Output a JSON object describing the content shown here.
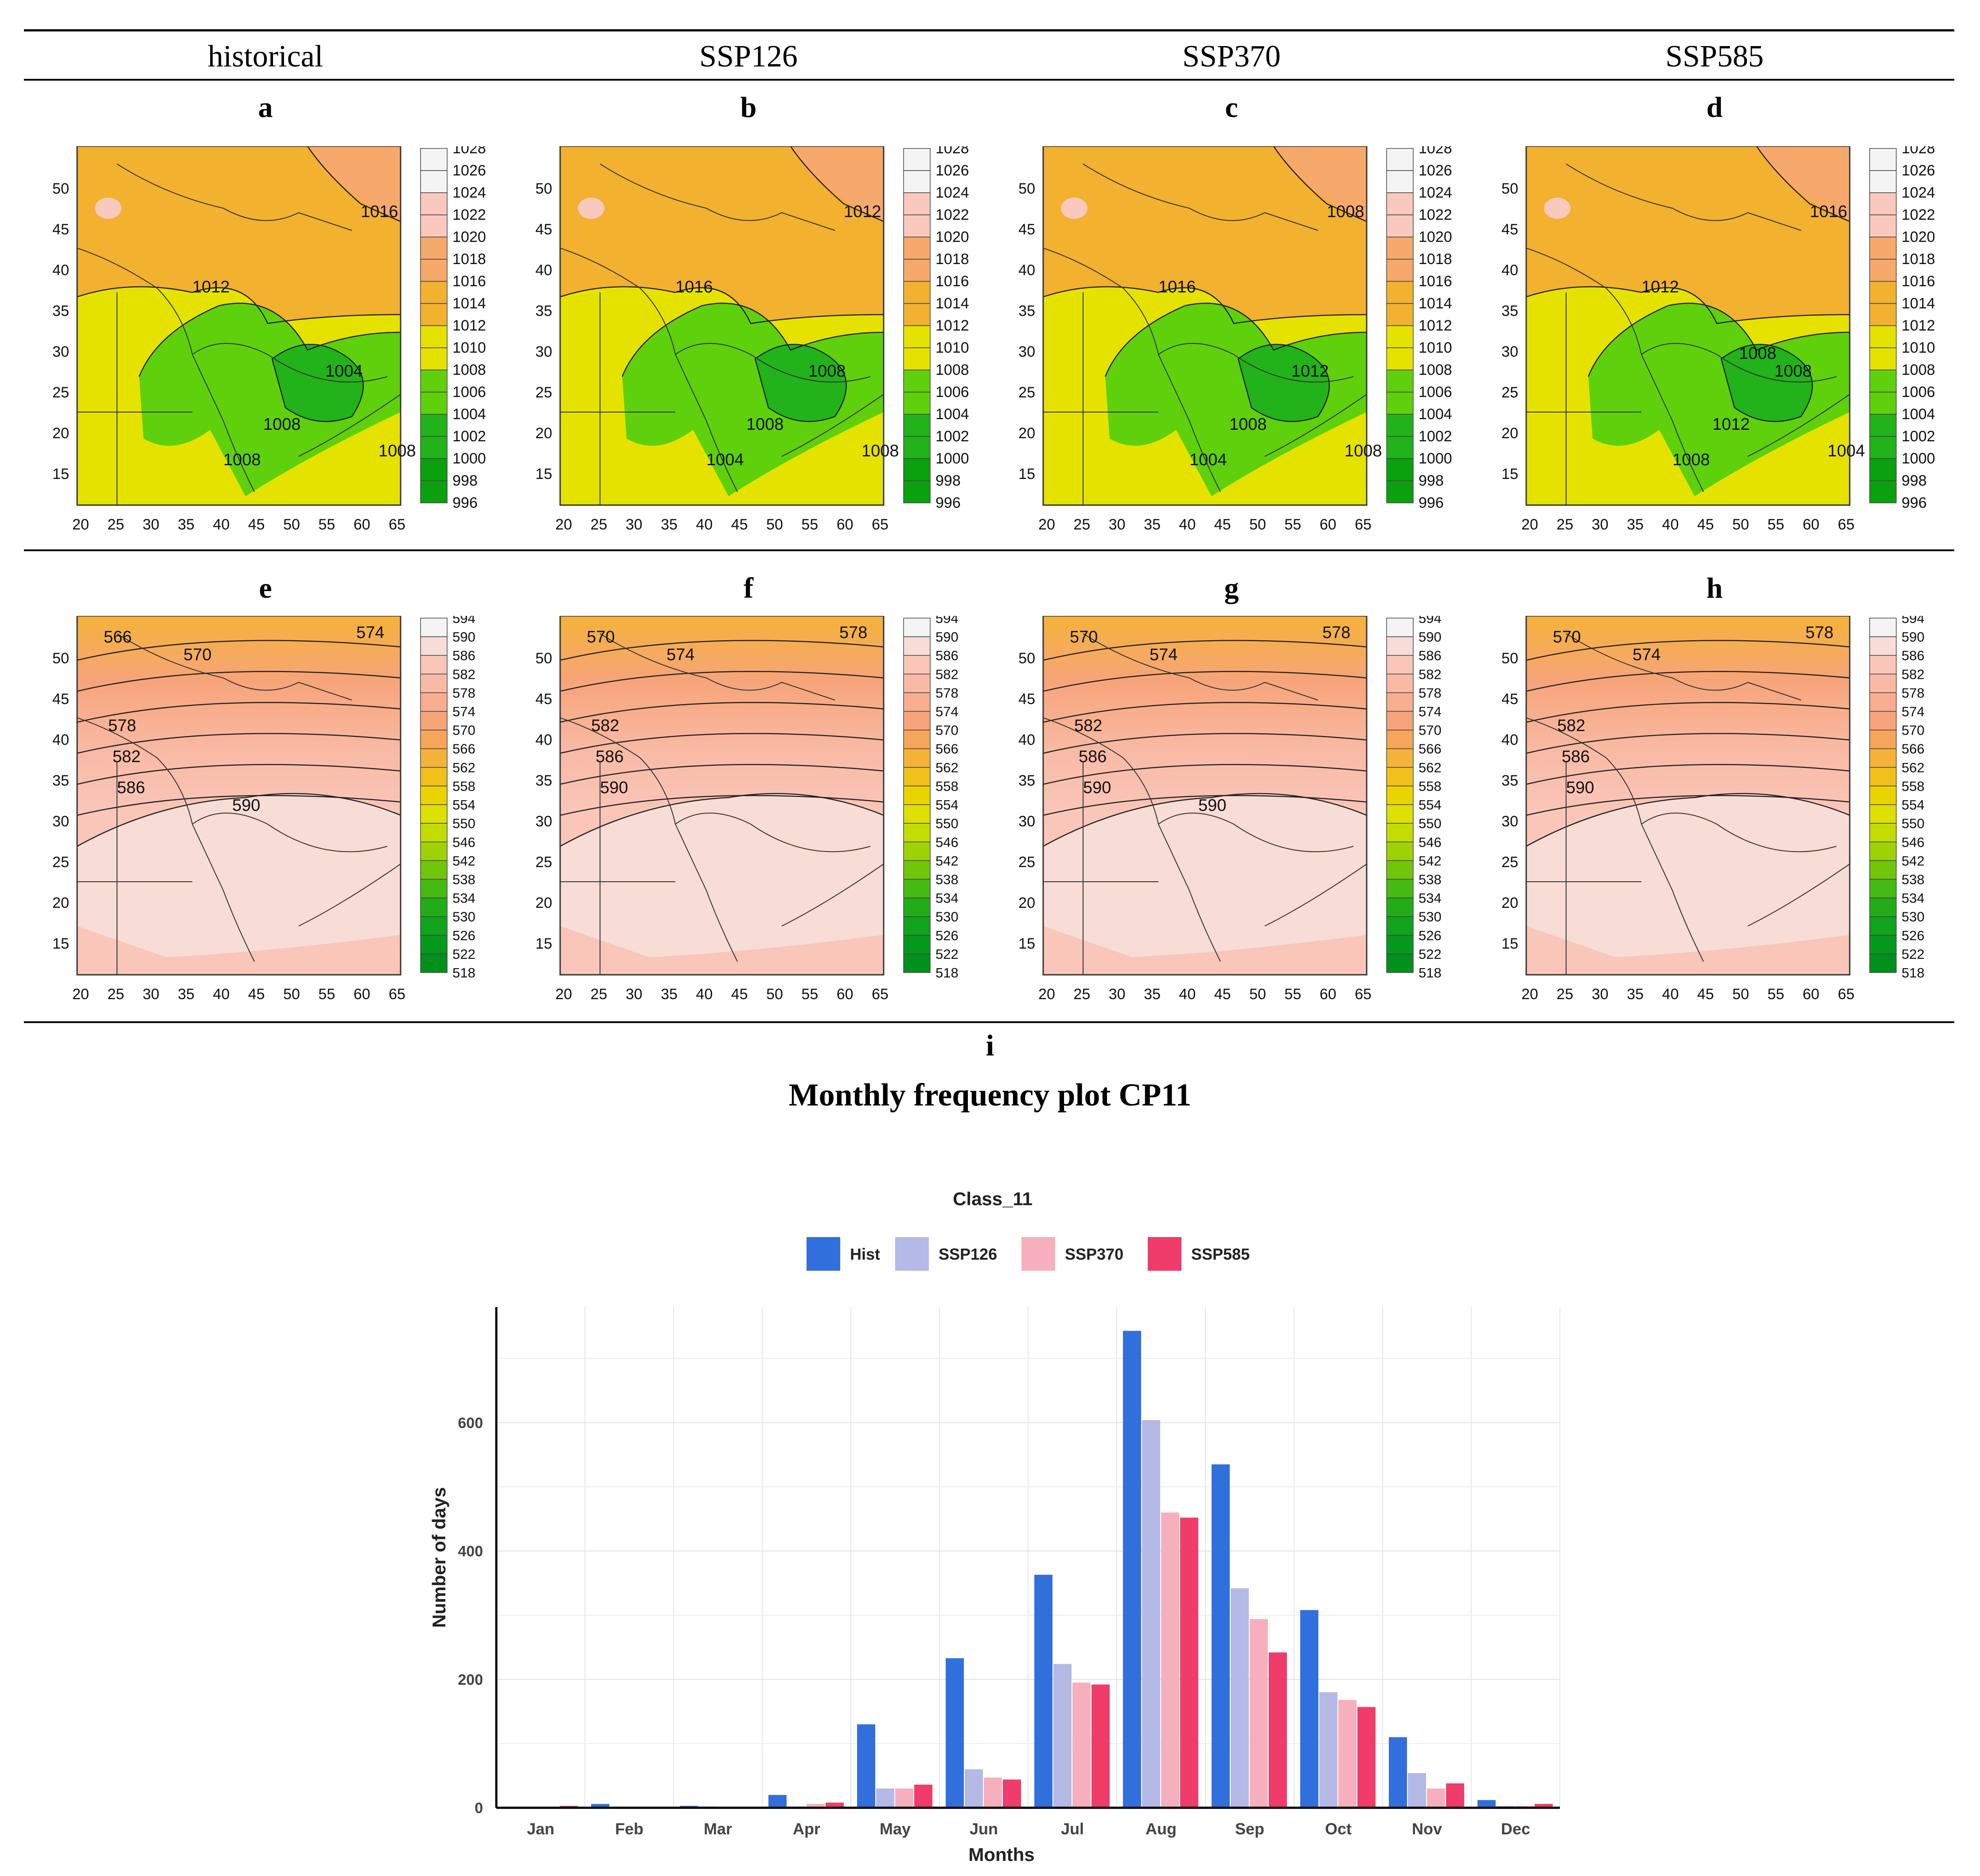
{
  "header": {
    "columns": [
      "historical",
      "SSP126",
      "SSP370",
      "SSP585"
    ]
  },
  "panels": {
    "row1_labels": [
      "a",
      "b",
      "c",
      "d"
    ],
    "row2_labels": [
      "e",
      "f",
      "g",
      "h"
    ],
    "i_label": "i"
  },
  "slp": {
    "levels": [
      "1028",
      "1026",
      "1024",
      "1022",
      "1020",
      "1018",
      "1016",
      "1014",
      "1012",
      "1010",
      "1008",
      "1006",
      "1004",
      "1002",
      "1000",
      "998",
      "996"
    ],
    "colors": [
      "#f4f4f4",
      "#f4f4f4",
      "#f9c9bd",
      "#f9c9bd",
      "#f7a96b",
      "#f7a96b",
      "#f2b12e",
      "#f2b12e",
      "#e6e200",
      "#e6e200",
      "#5fd00c",
      "#5fd00c",
      "#22b21a",
      "#22b21a",
      "#0aa00e",
      "#0aa00e"
    ],
    "contour_labels": [
      [
        "1012",
        "1016",
        "1004",
        "1008",
        "1008",
        "1008"
      ],
      [
        "1016",
        "1012",
        "1008",
        "1008",
        "1004",
        "1008"
      ],
      [
        "1016",
        "1008",
        "1012",
        "1008",
        "1004",
        "1008"
      ],
      [
        "1012",
        "1016",
        "1008",
        "1012",
        "1008",
        "1004",
        "1008"
      ]
    ]
  },
  "z500": {
    "levels": [
      "594",
      "590",
      "586",
      "582",
      "578",
      "574",
      "570",
      "566",
      "562",
      "558",
      "554",
      "550",
      "546",
      "542",
      "538",
      "534",
      "530",
      "526",
      "522",
      "518"
    ],
    "colors": [
      "#f4f4f4",
      "#f8dcd6",
      "#f9c6b9",
      "#f9baa5",
      "#f8ad90",
      "#f7a479",
      "#f6a55a",
      "#f4b338",
      "#f1c01a",
      "#ead300",
      "#dde000",
      "#c3dc00",
      "#9fd205",
      "#6fc60a",
      "#45ba12",
      "#22ad18",
      "#10a31c",
      "#05991c",
      "#00901b"
    ],
    "contour_labels": [
      [
        "566",
        "570",
        "574",
        "578",
        "582",
        "586",
        "590"
      ],
      [
        "570",
        "574",
        "578",
        "582",
        "586",
        "590"
      ],
      [
        "570",
        "574",
        "578",
        "582",
        "586",
        "590",
        "590"
      ],
      [
        "570",
        "574",
        "578",
        "582",
        "586",
        "590"
      ]
    ]
  },
  "map_axes": {
    "x_ticks": [
      "20",
      "25",
      "30",
      "35",
      "40",
      "45",
      "50",
      "55",
      "60",
      "65"
    ],
    "y_ticks": [
      "50",
      "45",
      "40",
      "35",
      "30",
      "25",
      "20",
      "15"
    ]
  },
  "chart_heading": "Monthly frequency plot CP11",
  "chart_data": {
    "type": "bar",
    "title": "Class_11",
    "xlabel": "Months",
    "ylabel": "Number of days",
    "categories": [
      "Jan",
      "Feb",
      "Mar",
      "Apr",
      "May",
      "Jun",
      "Jul",
      "Aug",
      "Sep",
      "Oct",
      "Nov",
      "Dec"
    ],
    "ylim": [
      0,
      780
    ],
    "yticks": [
      "0",
      "200",
      "400",
      "600"
    ],
    "series": [
      {
        "name": "Hist",
        "color": "#3170dc",
        "values": [
          0,
          6,
          3,
          20,
          130,
          233,
          363,
          743,
          535,
          308,
          110,
          12
        ]
      },
      {
        "name": "SSP126",
        "color": "#b4b9e6",
        "values": [
          0,
          0,
          2,
          2,
          30,
          60,
          224,
          604,
          342,
          180,
          54,
          3
        ]
      },
      {
        "name": "SSP370",
        "color": "#f6b0bd",
        "values": [
          0,
          0,
          0,
          6,
          30,
          47,
          195,
          460,
          294,
          168,
          30,
          3
        ]
      },
      {
        "name": "SSP585",
        "color": "#ef3c6a",
        "values": [
          3,
          0,
          0,
          8,
          36,
          44,
          192,
          452,
          242,
          157,
          38,
          6
        ]
      }
    ]
  }
}
